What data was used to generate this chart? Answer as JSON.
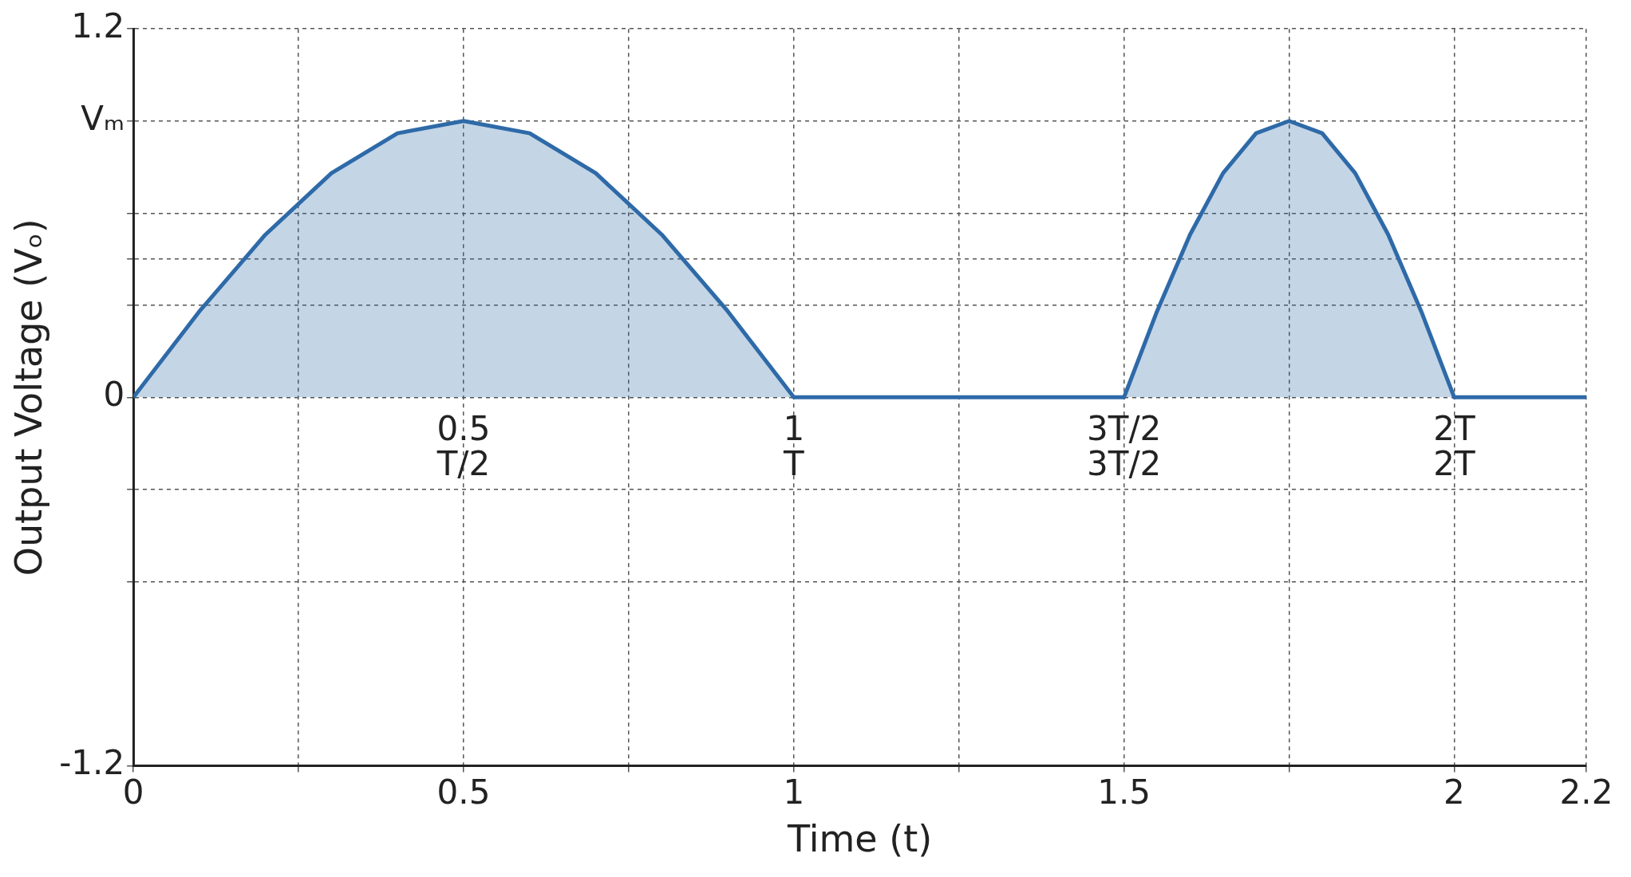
{
  "chart_data": {
    "type": "area",
    "xlabel": "Time (t)",
    "ylabel": "Output Voltage (Vₒ)",
    "x": [
      0,
      0.1,
      0.2,
      0.3,
      0.4,
      0.5,
      0.6,
      0.7,
      0.8,
      0.9,
      1,
      1.25,
      1.5,
      1.55,
      1.6,
      1.65,
      1.7,
      1.75,
      1.8,
      1.85,
      1.9,
      1.95,
      2,
      2.1,
      2.2
    ],
    "series": [
      {
        "color": "#2e6aa8",
        "values": [
          0,
          0.28,
          0.53,
          0.73,
          0.86,
          0.9,
          0.86,
          0.73,
          0.53,
          0.28,
          0,
          0,
          0,
          0.28,
          0.53,
          0.73,
          0.86,
          0.9,
          0.86,
          0.73,
          0.53,
          0.28,
          0,
          0,
          0
        ]
      }
    ],
    "xlim": [
      0,
      2.2
    ],
    "xticks": [
      0,
      {
        "value": 0.25,
        "label": null
      },
      0.5,
      {
        "value": 0.75,
        "label": null
      },
      1,
      {
        "value": 1.25,
        "label": null
      },
      1.5,
      {
        "value": 1.75,
        "label": null
      },
      2,
      2.2
    ],
    "ylim": [
      -1.2,
      1.2
    ],
    "yticks": [
      -1.2,
      {
        "value": -0.6,
        "label": null
      },
      {
        "value": -0.3,
        "label": null
      },
      0,
      {
        "value": 0.3,
        "label": null
      },
      {
        "value": 0.45,
        "label": null
      },
      {
        "value": 0.6,
        "label": null
      },
      {
        "value": 0.9,
        "label": "Vₘ"
      },
      1.2
    ],
    "grid": true,
    "line_style": "solid",
    "marker": "none",
    "annotations": [
      {
        "text": "0.5\nT/2",
        "x": 0.5,
        "y": 0
      },
      {
        "text": "1\nT",
        "x": 1,
        "y": 0
      },
      {
        "text": "3T/2\n3T/2",
        "x": 1.5,
        "y": 0
      },
      {
        "text": "2T\n2T",
        "x": 2,
        "y": 0
      }
    ]
  }
}
